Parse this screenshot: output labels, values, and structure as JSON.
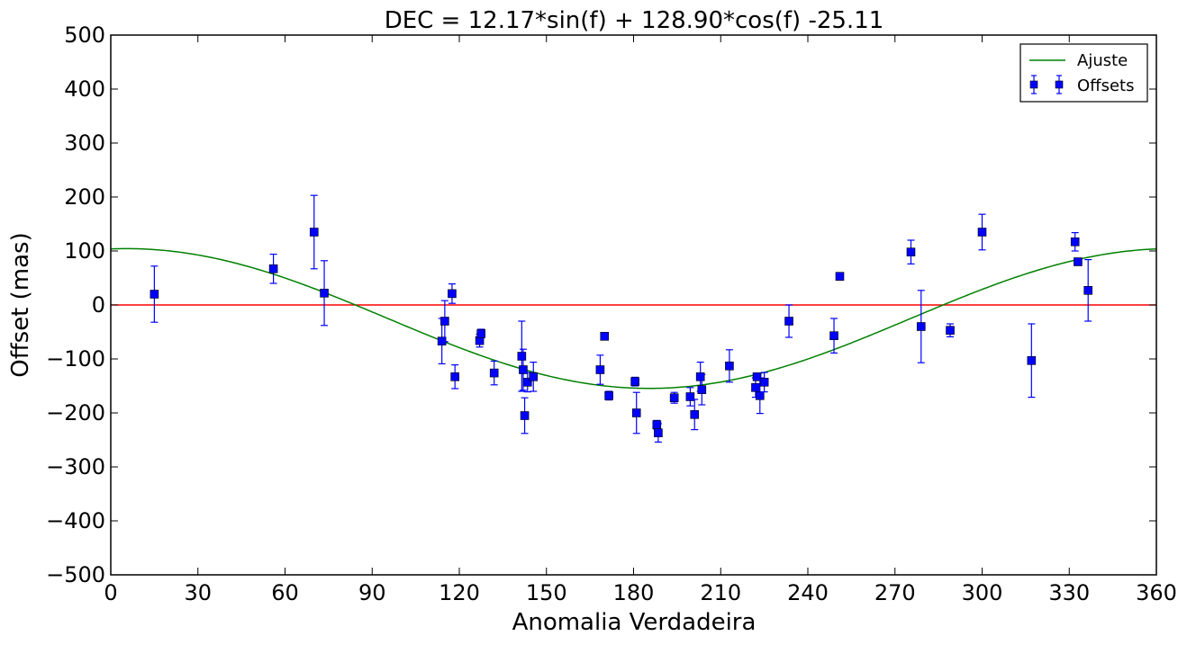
{
  "chart_data": {
    "type": "scatter",
    "title": "DEC = 12.17*sin(f) + 128.90*cos(f) -25.11",
    "xlabel": "Anomalia Verdadeira",
    "ylabel": "Offset (mas)",
    "xlim": [
      0,
      360
    ],
    "ylim": [
      -500,
      500
    ],
    "xticks": [
      0,
      30,
      60,
      90,
      120,
      150,
      180,
      210,
      240,
      270,
      300,
      330,
      360
    ],
    "yticks": [
      -500,
      -400,
      -300,
      -200,
      -100,
      0,
      100,
      200,
      300,
      400,
      500
    ],
    "xtick_labels": [
      "0",
      "30",
      "60",
      "90",
      "120",
      "150",
      "180",
      "210",
      "240",
      "270",
      "300",
      "330",
      "360"
    ],
    "ytick_labels": [
      "−500",
      "−400",
      "−300",
      "−200",
      "−100",
      "0",
      "100",
      "200",
      "300",
      "400",
      "500"
    ],
    "grid": false,
    "legend_position": "top-right",
    "fit": {
      "name": "Ajuste",
      "color": "#008000",
      "a_sin": 12.17,
      "b_cos": 128.9,
      "c": -25.11
    },
    "reference_line": {
      "y": 0,
      "color": "#ff0000"
    },
    "series": [
      {
        "name": "Offsets",
        "color": "#0000ff",
        "marker": "square",
        "points": [
          {
            "x": 15,
            "y": 20,
            "err": 52
          },
          {
            "x": 56,
            "y": 67,
            "err": 27
          },
          {
            "x": 70,
            "y": 135,
            "err": 68
          },
          {
            "x": 73.5,
            "y": 22,
            "err": 60
          },
          {
            "x": 114,
            "y": -67,
            "err": 42
          },
          {
            "x": 115,
            "y": -30,
            "err": 38
          },
          {
            "x": 117.5,
            "y": 21,
            "err": 18
          },
          {
            "x": 118.5,
            "y": -133,
            "err": 22
          },
          {
            "x": 127,
            "y": -66,
            "err": 12
          },
          {
            "x": 127.5,
            "y": -53,
            "err": 8
          },
          {
            "x": 132,
            "y": -126,
            "err": 22
          },
          {
            "x": 141.5,
            "y": -95,
            "err": 65
          },
          {
            "x": 142,
            "y": -120,
            "err": 38
          },
          {
            "x": 142.5,
            "y": -205,
            "err": 33
          },
          {
            "x": 143.5,
            "y": -143,
            "err": 18
          },
          {
            "x": 145.5,
            "y": -133,
            "err": 27
          },
          {
            "x": 168.5,
            "y": -120,
            "err": 27
          },
          {
            "x": 170,
            "y": -58,
            "err": 5
          },
          {
            "x": 171.5,
            "y": -168,
            "err": 8
          },
          {
            "x": 180.5,
            "y": -142,
            "err": 8
          },
          {
            "x": 181,
            "y": -200,
            "err": 38
          },
          {
            "x": 188,
            "y": -222,
            "err": 8
          },
          {
            "x": 188.5,
            "y": -237,
            "err": 17
          },
          {
            "x": 194,
            "y": -172,
            "err": 10
          },
          {
            "x": 199.5,
            "y": -170,
            "err": 17
          },
          {
            "x": 201,
            "y": -203,
            "err": 28
          },
          {
            "x": 203,
            "y": -133,
            "err": 27
          },
          {
            "x": 203.5,
            "y": -157,
            "err": 28
          },
          {
            "x": 213,
            "y": -113,
            "err": 30
          },
          {
            "x": 222,
            "y": -153,
            "err": 18
          },
          {
            "x": 222.5,
            "y": -133,
            "err": 5
          },
          {
            "x": 223.5,
            "y": -168,
            "err": 33
          },
          {
            "x": 225,
            "y": -143,
            "err": 18
          },
          {
            "x": 233.5,
            "y": -30,
            "err": 30
          },
          {
            "x": 249,
            "y": -57,
            "err": 32
          },
          {
            "x": 251,
            "y": 53,
            "err": 5
          },
          {
            "x": 275.5,
            "y": 98,
            "err": 22
          },
          {
            "x": 279,
            "y": -40,
            "err": 67
          },
          {
            "x": 289,
            "y": -47,
            "err": 12
          },
          {
            "x": 300,
            "y": 135,
            "err": 33
          },
          {
            "x": 317,
            "y": -103,
            "err": 68
          },
          {
            "x": 332,
            "y": 117,
            "err": 17
          },
          {
            "x": 333,
            "y": 80,
            "err": 5
          },
          {
            "x": 336.5,
            "y": 27,
            "err": 57
          }
        ]
      }
    ]
  }
}
